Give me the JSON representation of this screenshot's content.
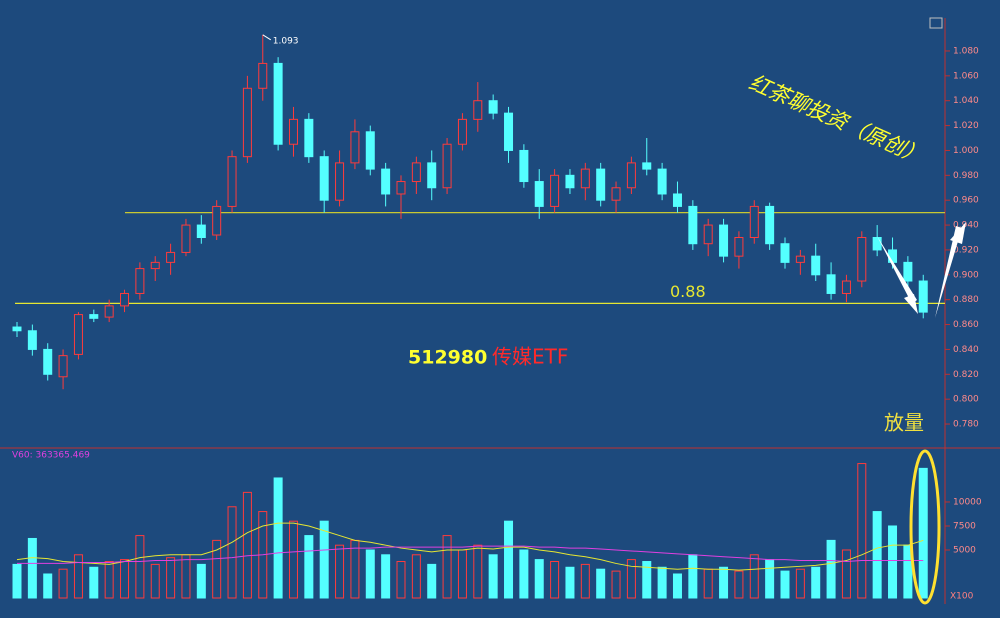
{
  "chart_data": [
    {
      "type": "candlestick",
      "ylim": [
        0.76,
        1.1
      ],
      "yticks": [
        {
          "value": 0.78,
          "label": "0.780"
        },
        {
          "value": 0.8,
          "label": "0.800"
        },
        {
          "value": 0.82,
          "label": "0.820"
        },
        {
          "value": 0.84,
          "label": "0.840"
        },
        {
          "value": 0.86,
          "label": "0.860"
        },
        {
          "value": 0.88,
          "label": "0.880"
        },
        {
          "value": 0.9,
          "label": "0.900"
        },
        {
          "value": 0.92,
          "label": "0.920"
        },
        {
          "value": 0.94,
          "label": "0.940"
        },
        {
          "value": 0.96,
          "label": "0.960"
        },
        {
          "value": 0.98,
          "label": "0.980"
        },
        {
          "value": 1.0,
          "label": "1.000"
        },
        {
          "value": 1.02,
          "label": "1.020"
        },
        {
          "value": 1.04,
          "label": "1.040"
        },
        {
          "value": 1.06,
          "label": "1.060"
        },
        {
          "value": 1.08,
          "label": "1.080"
        }
      ],
      "up_color": "#ff3b3b",
      "down_color": "#54ffff",
      "open": [
        0.858,
        0.855,
        0.84,
        0.818,
        0.836,
        0.868,
        0.866,
        0.875,
        0.885,
        0.905,
        0.91,
        0.918,
        0.94,
        0.932,
        0.955,
        0.995,
        1.05,
        1.07,
        1.005,
        1.025,
        0.995,
        0.96,
        0.99,
        1.015,
        0.985,
        0.965,
        0.975,
        0.99,
        0.97,
        1.005,
        1.025,
        1.04,
        1.03,
        1.0,
        0.975,
        0.955,
        0.98,
        0.97,
        0.985,
        0.96,
        0.97,
        0.99,
        0.985,
        0.965,
        0.955,
        0.925,
        0.94,
        0.915,
        0.93,
        0.955,
        0.925,
        0.91,
        0.915,
        0.9,
        0.885,
        0.895,
        0.93,
        0.92,
        0.91,
        0.895
      ],
      "high": [
        0.862,
        0.86,
        0.845,
        0.84,
        0.87,
        0.872,
        0.88,
        0.888,
        0.91,
        0.915,
        0.925,
        0.945,
        0.948,
        0.96,
        1.0,
        1.06,
        1.093,
        1.075,
        1.035,
        1.03,
        1.0,
        1.0,
        1.025,
        1.02,
        0.99,
        0.98,
        0.995,
        1.0,
        1.01,
        1.03,
        1.055,
        1.045,
        1.035,
        1.005,
        0.985,
        0.985,
        0.985,
        0.99,
        0.99,
        0.975,
        0.995,
        1.01,
        0.99,
        0.975,
        0.96,
        0.945,
        0.945,
        0.935,
        0.96,
        0.958,
        0.93,
        0.92,
        0.925,
        0.91,
        0.9,
        0.935,
        0.94,
        0.93,
        0.915,
        0.9
      ],
      "low": [
        0.85,
        0.835,
        0.815,
        0.808,
        0.832,
        0.862,
        0.862,
        0.87,
        0.88,
        0.895,
        0.9,
        0.915,
        0.925,
        0.928,
        0.95,
        0.99,
        1.04,
        1.0,
        0.995,
        0.99,
        0.95,
        0.955,
        0.985,
        0.98,
        0.955,
        0.945,
        0.965,
        0.96,
        0.965,
        1.0,
        1.015,
        1.025,
        0.99,
        0.97,
        0.945,
        0.95,
        0.965,
        0.96,
        0.955,
        0.95,
        0.965,
        0.98,
        0.96,
        0.95,
        0.92,
        0.915,
        0.91,
        0.905,
        0.925,
        0.92,
        0.905,
        0.9,
        0.895,
        0.88,
        0.878,
        0.89,
        0.915,
        0.905,
        0.89,
        0.865
      ],
      "close": [
        0.855,
        0.84,
        0.82,
        0.835,
        0.868,
        0.865,
        0.875,
        0.885,
        0.905,
        0.91,
        0.918,
        0.94,
        0.93,
        0.955,
        0.995,
        1.05,
        1.07,
        1.005,
        1.025,
        0.995,
        0.96,
        0.99,
        1.015,
        0.985,
        0.965,
        0.975,
        0.99,
        0.97,
        1.005,
        1.025,
        1.04,
        1.03,
        1.0,
        0.975,
        0.955,
        0.98,
        0.97,
        0.985,
        0.96,
        0.97,
        0.99,
        0.985,
        0.965,
        0.955,
        0.925,
        0.94,
        0.915,
        0.93,
        0.955,
        0.925,
        0.91,
        0.915,
        0.9,
        0.885,
        0.895,
        0.93,
        0.92,
        0.91,
        0.895,
        0.87
      ],
      "high_annotation": {
        "index": 16,
        "value": 1.093
      },
      "reference_lines": [
        {
          "value": 0.95,
          "color": "#c8c832"
        },
        {
          "value": 0.877,
          "label": "0.88",
          "color": "#e6e632"
        }
      ],
      "code": "512980",
      "name": "传媒ETF",
      "watermark": "红茶聊投资（原创）",
      "note": "放量"
    },
    {
      "type": "bar",
      "indicator_label": "V60: 363365.469",
      "unit_label": "X100",
      "ylim": [
        0,
        15600
      ],
      "yticks": [
        5000,
        7500,
        10000
      ],
      "values": [
        3500,
        6200,
        2500,
        3000,
        4500,
        3200,
        3800,
        4000,
        6500,
        3500,
        4200,
        4500,
        3500,
        6000,
        9500,
        11000,
        9000,
        12500,
        8000,
        6500,
        8000,
        5500,
        6000,
        5000,
        4500,
        3800,
        4500,
        3500,
        6500,
        5000,
        5500,
        4500,
        8000,
        5000,
        4000,
        3800,
        3200,
        3500,
        3000,
        2800,
        4000,
        3800,
        3200,
        2500,
        4500,
        3000,
        3200,
        2800,
        4500,
        4000,
        2800,
        3000,
        3200,
        6000,
        5000,
        14000,
        9000,
        7500,
        5500,
        13500
      ],
      "lines": [
        {
          "color": "#e6e632",
          "values": [
            4000,
            4200,
            4100,
            3800,
            3700,
            3600,
            3500,
            3800,
            4200,
            4400,
            4500,
            4500,
            4500,
            5000,
            5800,
            6800,
            7500,
            7800,
            7800,
            7500,
            7000,
            6500,
            6000,
            5800,
            5500,
            5200,
            5000,
            4800,
            5000,
            5000,
            5200,
            5100,
            5300,
            5300,
            5000,
            4800,
            4500,
            4300,
            4000,
            3600,
            3300,
            3200,
            3100,
            3000,
            3100,
            3000,
            3000,
            2900,
            3000,
            3100,
            3200,
            3300,
            3400,
            3600,
            3900,
            4500,
            5200,
            5500,
            5500,
            6000
          ]
        },
        {
          "color": "#e040e0",
          "values": [
            3600,
            3600,
            3600,
            3600,
            3700,
            3700,
            3700,
            3800,
            3800,
            3900,
            3900,
            4000,
            4000,
            4100,
            4200,
            4400,
            4500,
            4700,
            4800,
            4900,
            5000,
            5100,
            5200,
            5200,
            5300,
            5300,
            5300,
            5300,
            5300,
            5300,
            5400,
            5400,
            5400,
            5400,
            5300,
            5300,
            5200,
            5200,
            5100,
            5000,
            4900,
            4800,
            4700,
            4600,
            4500,
            4400,
            4300,
            4200,
            4100,
            4000,
            4000,
            3900,
            3900,
            3900,
            3800,
            3900,
            3900,
            3900,
            3900,
            3900
          ]
        }
      ]
    }
  ]
}
